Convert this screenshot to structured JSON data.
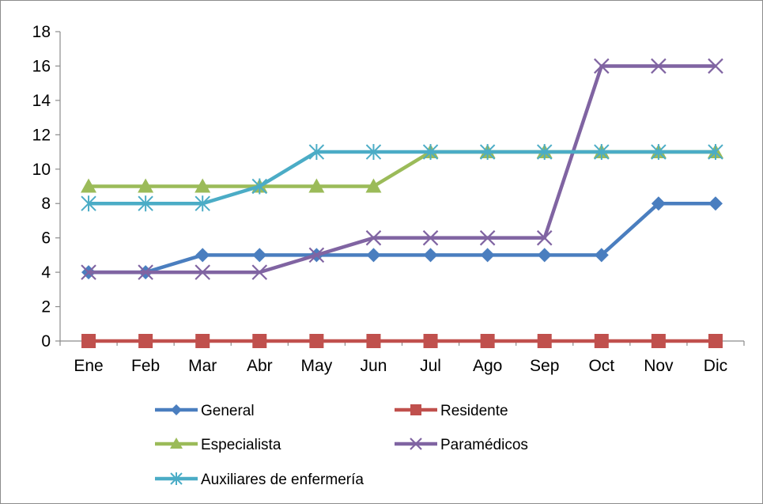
{
  "chart_data": {
    "type": "line",
    "title": "",
    "xlabel": "",
    "ylabel": "",
    "categories": [
      "Ene",
      "Feb",
      "Mar",
      "Abr",
      "May",
      "Jun",
      "Jul",
      "Ago",
      "Sep",
      "Oct",
      "Nov",
      "Dic"
    ],
    "ylim": [
      0,
      18
    ],
    "yticks": [
      0,
      2,
      4,
      6,
      8,
      10,
      12,
      14,
      16,
      18
    ],
    "grid": false,
    "legend_position": "bottom",
    "series": [
      {
        "name": "General",
        "color": "#4a7ebf",
        "marker": "diamond",
        "values": [
          4,
          4,
          5,
          5,
          5,
          5,
          5,
          5,
          5,
          5,
          8,
          8
        ]
      },
      {
        "name": "Residente",
        "color": "#c0504d",
        "marker": "square",
        "values": [
          0,
          0,
          0,
          0,
          0,
          0,
          0,
          0,
          0,
          0,
          0,
          0
        ]
      },
      {
        "name": "Especialista",
        "color": "#9bbb59",
        "marker": "triangle",
        "values": [
          9,
          9,
          9,
          9,
          9,
          9,
          11,
          11,
          11,
          11,
          11,
          11
        ]
      },
      {
        "name": "Paramédicos",
        "color": "#8064a2",
        "marker": "x",
        "values": [
          4,
          4,
          4,
          4,
          5,
          6,
          6,
          6,
          6,
          16,
          16,
          16
        ]
      },
      {
        "name": "Auxiliares de enfermería",
        "color": "#4bacc6",
        "marker": "star",
        "values": [
          8,
          8,
          8,
          9,
          11,
          11,
          11,
          11,
          11,
          11,
          11,
          11
        ]
      }
    ]
  }
}
